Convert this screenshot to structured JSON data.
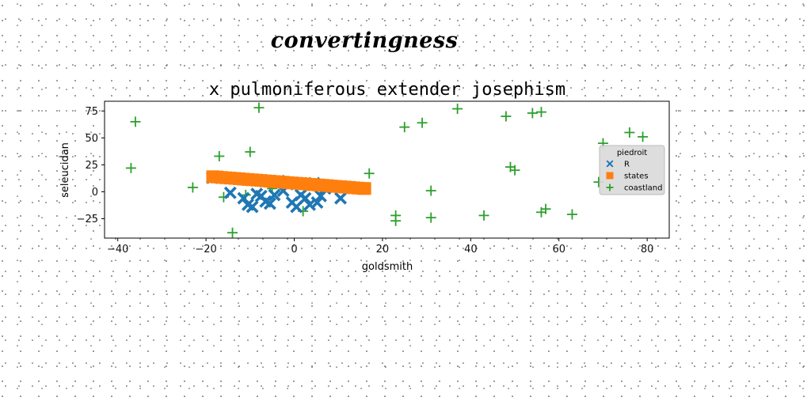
{
  "suptitle": "convertingness",
  "chart_data": {
    "type": "scatter",
    "title": "x pulmoniferous extender josephism",
    "xlabel": "goldsmith",
    "ylabel": "seleucidan",
    "xlim": [
      -43,
      85
    ],
    "ylim": [
      -43,
      84
    ],
    "xticks": [
      -40,
      -20,
      0,
      20,
      40,
      60,
      80
    ],
    "yticks": [
      -25,
      0,
      25,
      50,
      75
    ],
    "grid": false,
    "legend": {
      "title": "piedroit",
      "position": "right",
      "entries": [
        "R",
        "states",
        "coastland"
      ]
    },
    "colors": {
      "R": "#1f77b4",
      "states": "#ff7f0e",
      "coastland": "#2ca02c"
    },
    "series": [
      {
        "name": "R",
        "marker": "x-filled",
        "points": [
          [
            -18.6,
            13
          ],
          [
            -14.5,
            -1
          ],
          [
            -11.5,
            -6
          ],
          [
            -10.5,
            -12
          ],
          [
            -9.5,
            -14
          ],
          [
            -8.5,
            -2
          ],
          [
            -7.5,
            -4
          ],
          [
            -6.5,
            -9
          ],
          [
            -5.5,
            -11
          ],
          [
            -4.5,
            -3
          ],
          [
            -3.5,
            10
          ],
          [
            -2.5,
            1
          ],
          [
            -1.5,
            7
          ],
          [
            -0.5,
            -10
          ],
          [
            0.5,
            -14
          ],
          [
            1.5,
            -3
          ],
          [
            2.5,
            -6
          ],
          [
            3.5,
            -12
          ],
          [
            4.5,
            8
          ],
          [
            5.2,
            -10
          ],
          [
            6.0,
            -4
          ],
          [
            7.0,
            3
          ],
          [
            10.5,
            -6
          ],
          [
            11.5,
            4
          ]
        ]
      },
      {
        "name": "states",
        "marker": "square",
        "points": [
          [
            -18.5,
            14.0
          ],
          [
            -17.5,
            13.7
          ],
          [
            -16.5,
            13.3
          ],
          [
            -15.5,
            13.0
          ],
          [
            -14.5,
            12.7
          ],
          [
            -13.5,
            12.4
          ],
          [
            -12.5,
            12.1
          ],
          [
            -11.5,
            11.7
          ],
          [
            -10.5,
            11.4
          ],
          [
            -9.5,
            11.1
          ],
          [
            -8.5,
            10.8
          ],
          [
            -7.5,
            10.5
          ],
          [
            -6.5,
            10.1
          ],
          [
            -5.5,
            9.8
          ],
          [
            -4.5,
            9.5
          ],
          [
            -3.5,
            9.2
          ],
          [
            -2.5,
            8.9
          ],
          [
            -1.5,
            8.5
          ],
          [
            -0.5,
            8.2
          ],
          [
            0.5,
            7.9
          ],
          [
            1.5,
            7.6
          ],
          [
            2.5,
            7.3
          ],
          [
            3.5,
            6.9
          ],
          [
            4.5,
            6.6
          ],
          [
            5.5,
            6.3
          ],
          [
            6.5,
            6.0
          ],
          [
            7.5,
            5.7
          ],
          [
            8.5,
            5.3
          ],
          [
            9.5,
            5.0
          ],
          [
            10.5,
            4.7
          ],
          [
            11.5,
            4.4
          ],
          [
            12.5,
            4.1
          ],
          [
            13.5,
            3.7
          ],
          [
            14.5,
            3.4
          ],
          [
            15.5,
            3.1
          ],
          [
            16.0,
            3.0
          ]
        ]
      },
      {
        "name": "coastland",
        "marker": "plus",
        "points": [
          [
            -36,
            65
          ],
          [
            -37,
            22
          ],
          [
            -23,
            4
          ],
          [
            -17,
            33
          ],
          [
            -16,
            -5
          ],
          [
            -14,
            -38
          ],
          [
            -11,
            -3
          ],
          [
            -10,
            37
          ],
          [
            -8,
            78
          ],
          [
            -5,
            3
          ],
          [
            2,
            -18
          ],
          [
            17,
            17
          ],
          [
            23,
            -22
          ],
          [
            23,
            -27
          ],
          [
            25,
            60
          ],
          [
            29,
            64
          ],
          [
            31,
            1
          ],
          [
            31,
            -24
          ],
          [
            37,
            77
          ],
          [
            43,
            -22
          ],
          [
            48,
            70
          ],
          [
            49,
            23
          ],
          [
            50,
            20
          ],
          [
            54,
            73
          ],
          [
            56,
            74
          ],
          [
            56,
            -19
          ],
          [
            57,
            -16
          ],
          [
            63,
            -21
          ],
          [
            69,
            9
          ],
          [
            70,
            45
          ],
          [
            76,
            55
          ],
          [
            79,
            51
          ]
        ]
      }
    ]
  }
}
